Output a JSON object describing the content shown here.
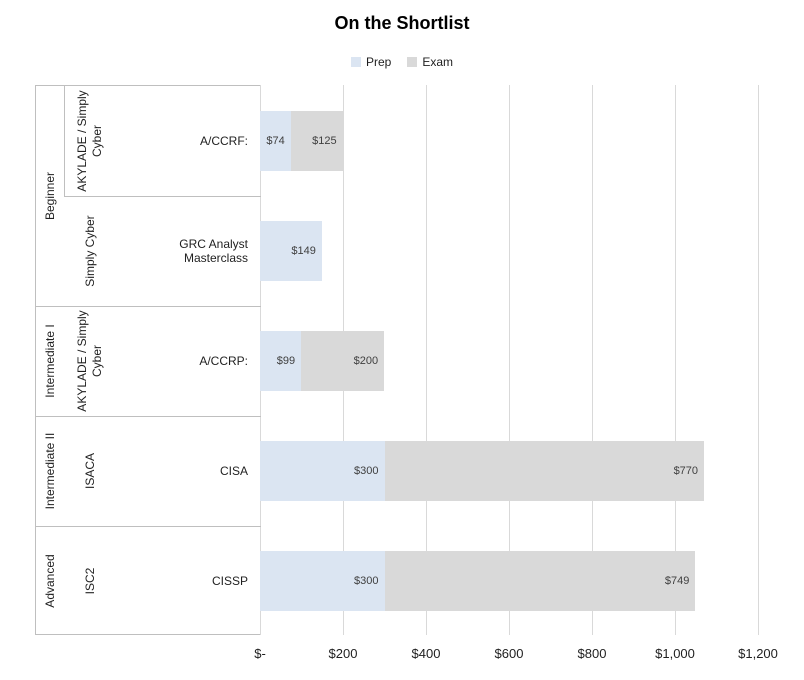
{
  "chart_data": {
    "type": "bar",
    "orientation": "horizontal",
    "stacked": true,
    "title": "On the Shortlist",
    "legend_position": "top",
    "grid": true,
    "xlim": [
      0,
      1200
    ],
    "x_tick_values": [
      0,
      200,
      400,
      600,
      800,
      1000,
      1200
    ],
    "x_tick_labels": [
      "$-",
      "$200",
      "$400",
      "$600",
      "$800",
      "$1,000",
      "$1,200"
    ],
    "series": [
      {
        "key": "prep",
        "label": "Prep",
        "color": "#dbe5f2"
      },
      {
        "key": "exam",
        "label": "Exam",
        "color": "#d9d9d9"
      }
    ],
    "rows": [
      {
        "tier": "Beginner",
        "provider": "AKYLADE / Simply Cyber",
        "course": "A/CCRF:",
        "prep": 74,
        "exam": 125,
        "prep_label": "$74",
        "exam_label": "$125"
      },
      {
        "tier": "Beginner",
        "provider": "Simply Cyber",
        "course": "GRC Analyst Masterclass",
        "prep": 149,
        "exam": null,
        "prep_label": "$149",
        "exam_label": null
      },
      {
        "tier": "Intermediate I",
        "provider": "AKYLADE / Simply Cyber",
        "course": "A/CCRP:",
        "prep": 99,
        "exam": 200,
        "prep_label": "$99",
        "exam_label": "$200"
      },
      {
        "tier": "Intermediate II",
        "provider": "ISACA",
        "course": "CISA",
        "prep": 300,
        "exam": 770,
        "prep_label": "$300",
        "exam_label": "$770"
      },
      {
        "tier": "Advanced",
        "provider": "ISC2",
        "course": "CISSP",
        "prep": 300,
        "exam": 749,
        "prep_label": "$300",
        "exam_label": "$749"
      }
    ],
    "style": {
      "gridline_color": "#d9d9d9",
      "axis_border_color": "#bfbfbf",
      "text_color": "#1f1f1f",
      "data_label_color": "#404040",
      "title_color": "#000000"
    }
  }
}
